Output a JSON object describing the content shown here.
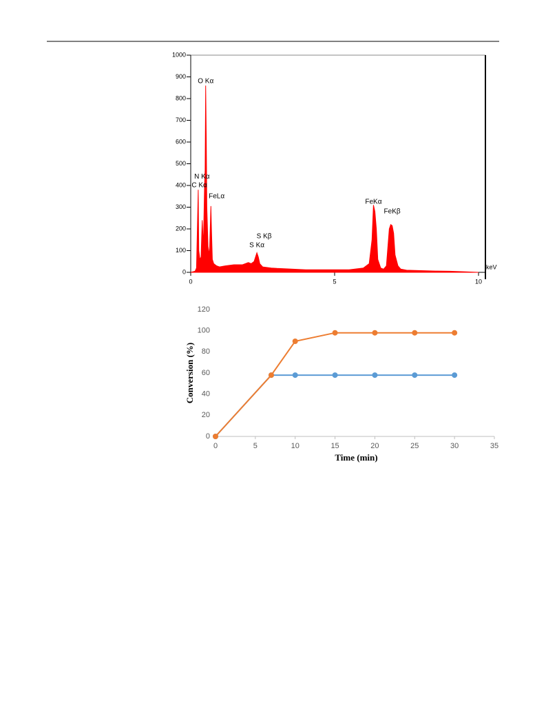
{
  "chart_data": [
    {
      "type": "area",
      "x": [
        0,
        0.15,
        0.2,
        0.24,
        0.26,
        0.28,
        0.32,
        0.36,
        0.4,
        0.44,
        0.48,
        0.5,
        0.52,
        0.54,
        0.56,
        0.6,
        0.65,
        0.7,
        0.72,
        0.75,
        0.8,
        0.9,
        1.0,
        1.2,
        1.5,
        1.8,
        2.0,
        2.1,
        2.2,
        2.3,
        2.35,
        2.4,
        2.5,
        2.8,
        3.0,
        3.5,
        4,
        4.5,
        5,
        5.5,
        6.0,
        6.2,
        6.3,
        6.35,
        6.4,
        6.45,
        6.5,
        6.6,
        6.7,
        6.8,
        6.9,
        6.95,
        7.0,
        7.05,
        7.1,
        7.2,
        7.3,
        7.5,
        8,
        8.5,
        9,
        9.5,
        10
      ],
      "values": [
        0,
        5,
        20,
        250,
        380,
        100,
        60,
        70,
        240,
        120,
        400,
        470,
        860,
        610,
        300,
        120,
        80,
        305,
        200,
        60,
        40,
        30,
        25,
        30,
        35,
        35,
        45,
        40,
        50,
        90,
        70,
        40,
        25,
        20,
        18,
        15,
        12,
        12,
        12,
        12,
        20,
        40,
        150,
        310,
        280,
        200,
        60,
        20,
        15,
        30,
        200,
        220,
        215,
        180,
        80,
        30,
        15,
        10,
        8,
        6,
        5,
        3,
        0
      ],
      "color": "#ff0000",
      "xlim": [
        0,
        10
      ],
      "xticks": [
        0,
        5,
        10
      ],
      "ylim": [
        0,
        1000
      ],
      "yticks": [
        0,
        100,
        200,
        300,
        400,
        500,
        600,
        700,
        800,
        900,
        1000
      ],
      "x_unit": "keV",
      "annotations": [
        {
          "text": "O Kα",
          "x": 0.52,
          "y": 880
        },
        {
          "text": "N Kα",
          "x": 0.39,
          "y": 440
        },
        {
          "text": "C Kα",
          "x": 0.3,
          "y": 400
        },
        {
          "text": "FeLα",
          "x": 0.9,
          "y": 350
        },
        {
          "text": "S Kβ",
          "x": 2.55,
          "y": 165
        },
        {
          "text": "S Kα",
          "x": 2.3,
          "y": 125
        },
        {
          "text": "FeKα",
          "x": 6.35,
          "y": 325
        },
        {
          "text": "FeKβ",
          "x": 7.0,
          "y": 280
        }
      ]
    },
    {
      "type": "line",
      "x": [
        0,
        7,
        10,
        15,
        20,
        25,
        30
      ],
      "series": [
        {
          "color": "#5b9bd5",
          "values": [
            0,
            58,
            58,
            58,
            58,
            58,
            58
          ]
        },
        {
          "color": "#ed7d31",
          "values": [
            0,
            58,
            90,
            98,
            98,
            98,
            98
          ]
        }
      ],
      "xlim": [
        0,
        35
      ],
      "xticks": [
        0,
        5,
        10,
        15,
        20,
        25,
        30,
        35
      ],
      "ylim": [
        0,
        120
      ],
      "yticks": [
        0,
        20,
        40,
        60,
        80,
        100,
        120
      ],
      "xlabel": "Time (min)",
      "ylabel": "Conversion (%)"
    }
  ]
}
